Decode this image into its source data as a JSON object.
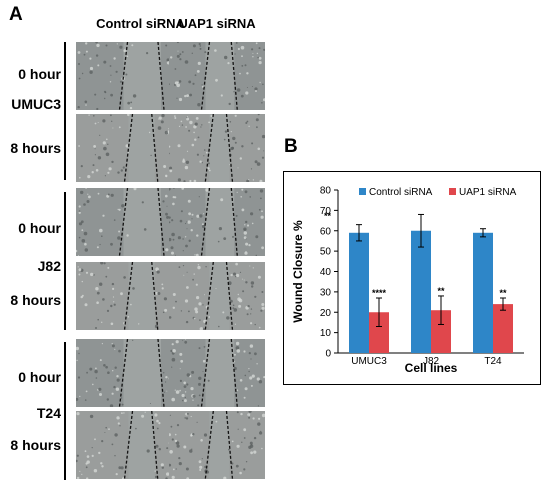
{
  "panel_a": {
    "letter": "A",
    "col_headers": [
      "Control siRNA",
      "UAP1 siRNA"
    ],
    "groups": [
      {
        "cell_line": "UMUC3",
        "time_labels": [
          "0 hour",
          "8 hours"
        ]
      },
      {
        "cell_line": "J82",
        "time_labels": [
          "0 hour",
          "8 hours"
        ]
      },
      {
        "cell_line": "T24",
        "time_labels": [
          "0 hour",
          "8 hours"
        ]
      }
    ]
  },
  "panel_b": {
    "letter": "B",
    "chart_data": {
      "type": "bar",
      "categories": [
        "UMUC3",
        "J82",
        "T24"
      ],
      "series": [
        {
          "name": "Control siRNA",
          "color": "#2e86c8",
          "values": [
            59,
            60,
            59
          ],
          "errors": [
            4,
            8,
            2
          ]
        },
        {
          "name": "UAP1 siRNA",
          "color": "#e0474c",
          "values": [
            20,
            21,
            24
          ],
          "errors": [
            7,
            7,
            3
          ],
          "significance": [
            "****",
            "**",
            "**"
          ]
        }
      ],
      "xlabel": "Cell lines",
      "ylabel": "Wound Closure %",
      "ylim": [
        0,
        80
      ],
      "yticks": [
        0,
        10,
        20,
        30,
        40,
        50,
        60,
        70,
        80
      ],
      "annotations": [
        "**"
      ],
      "legend_position": "top"
    }
  }
}
